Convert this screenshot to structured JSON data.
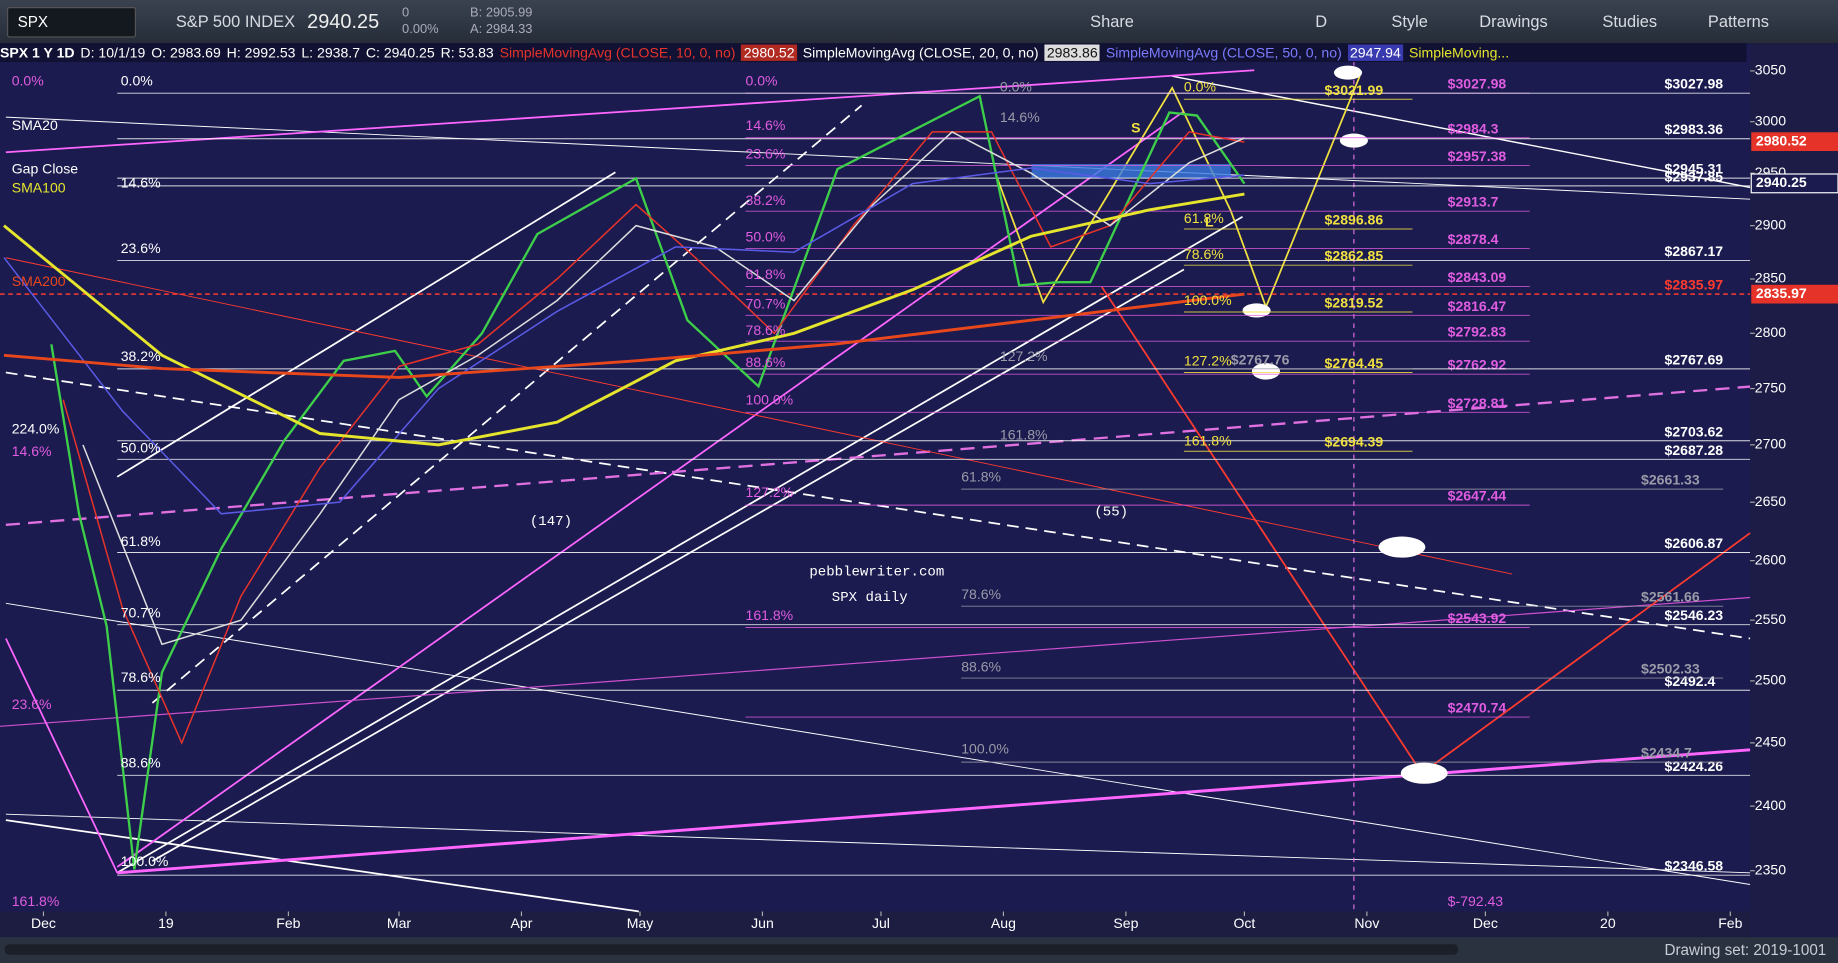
{
  "toolbar": {
    "symbol": "SPX",
    "name": "S&P 500 INDEX",
    "last": "2940.25",
    "change": "0",
    "change_pct": "0.00%",
    "bid": "B: 2905.99",
    "ask": "A: 2984.33",
    "buttons": [
      "Share",
      "D",
      "Style",
      "Drawings",
      "Studies",
      "Patterns"
    ]
  },
  "legend": {
    "symbol": "SPX 1 Y 1D",
    "fields": [
      "D: 10/1/19",
      "O: 2983.69",
      "H: 2992.53",
      "L: 2938.7",
      "C: 2940.25",
      "R: 53.83"
    ],
    "more": "SimpleMoving..."
  },
  "chart_data": {
    "type": "line",
    "log_scale": true,
    "xlim": [
      -11,
      432
    ],
    "xticks": [
      {
        "value": 0,
        "label": "Dec"
      },
      {
        "value": 31,
        "label": "19"
      },
      {
        "value": 62,
        "label": "Feb"
      },
      {
        "value": 90,
        "label": "Mar"
      },
      {
        "value": 121,
        "label": "Apr"
      },
      {
        "value": 151,
        "label": "May"
      },
      {
        "value": 182,
        "label": "Jun"
      },
      {
        "value": 212,
        "label": "Jul"
      },
      {
        "value": 243,
        "label": "Aug"
      },
      {
        "value": 274,
        "label": "Sep"
      },
      {
        "value": 304,
        "label": "Oct"
      },
      {
        "value": 335,
        "label": "Nov"
      },
      {
        "value": 365,
        "label": "Dec"
      },
      {
        "value": 396,
        "label": "20"
      },
      {
        "value": 427,
        "label": "Feb"
      }
    ],
    "ylim": [
      2319,
      3060
    ],
    "yticks": [
      2350,
      2400,
      2450,
      2500,
      2550,
      2600,
      2650,
      2700,
      2750,
      2800,
      2850,
      2900,
      2950,
      3000,
      3050
    ],
    "series": [
      {
        "name": "SPX",
        "color": "#3ecf4a",
        "current": 2940.25,
        "x": [
          2,
          9,
          16,
          23,
          30,
          45,
          61,
          76,
          89,
          97,
          111,
          125,
          150,
          163,
          181,
          201,
          237,
          247,
          257,
          265,
          285,
          292,
          304
        ],
        "values": [
          2790,
          2640,
          2545,
          2351,
          2507,
          2610,
          2704,
          2775,
          2784,
          2743,
          2800,
          2892,
          2945,
          2812,
          2752,
          2954,
          3025,
          2844,
          2847,
          2847,
          3009,
          3006,
          2940
        ]
      },
      {
        "name": "SimpleMovingAvg (CLOSE, 10, 0, no)",
        "color": "#e5332a",
        "current": 2980.52,
        "x": [
          5,
          20,
          35,
          50,
          70,
          90,
          110,
          130,
          150,
          165,
          185,
          205,
          225,
          240,
          255,
          270,
          290,
          304
        ],
        "values": [
          2740,
          2560,
          2450,
          2570,
          2680,
          2770,
          2790,
          2850,
          2920,
          2870,
          2800,
          2900,
          2990,
          2990,
          2880,
          2900,
          2990,
          2980
        ]
      },
      {
        "name": "SimpleMovingAvg (CLOSE, 20, 0, no)",
        "color": "#dddddd",
        "current": 2983.86,
        "x": [
          10,
          30,
          50,
          70,
          90,
          110,
          130,
          150,
          170,
          190,
          210,
          230,
          250,
          270,
          290,
          304
        ],
        "values": [
          2700,
          2530,
          2550,
          2640,
          2740,
          2780,
          2830,
          2900,
          2880,
          2830,
          2920,
          2990,
          2950,
          2900,
          2960,
          2984
        ]
      },
      {
        "name": "SimpleMovingAvg (CLOSE, 50, 0, no)",
        "color": "#5a5ae6",
        "current": 2947.94,
        "x": [
          -10,
          20,
          45,
          75,
          100,
          130,
          160,
          190,
          220,
          250,
          280,
          304
        ],
        "values": [
          2870,
          2730,
          2640,
          2650,
          2750,
          2820,
          2880,
          2875,
          2940,
          2955,
          2940,
          2948
        ]
      },
      {
        "name": "SMA100",
        "color": "#e5e52e",
        "x": [
          -10,
          30,
          70,
          100,
          130,
          160,
          190,
          220,
          250,
          280,
          304
        ],
        "values": [
          2900,
          2780,
          2710,
          2700,
          2720,
          2775,
          2800,
          2840,
          2890,
          2915,
          2930
        ]
      },
      {
        "name": "SMA200",
        "color": "#e8471c",
        "current": 2835.97,
        "x": [
          -10,
          30,
          90,
          150,
          200,
          250,
          304
        ],
        "values": [
          2780,
          2768,
          2760,
          2775,
          2790,
          2812,
          2836
        ]
      }
    ],
    "levels": [
      {
        "color": "#e05ce0",
        "items": [
          {
            "label": "$3027.98",
            "value": 3027.98
          },
          {
            "label": "$2984.3",
            "value": 2984.3
          },
          {
            "label": "$2957.38",
            "value": 2957.38
          },
          {
            "label": "$2913.7",
            "value": 2913.7
          },
          {
            "label": "$2878.4",
            "value": 2878.4
          },
          {
            "label": "$2843.09",
            "value": 2843.09
          },
          {
            "label": "$2816.47",
            "value": 2816.47
          },
          {
            "label": "$2792.83",
            "value": 2792.83
          },
          {
            "label": "$2762.92",
            "value": 2762.92
          },
          {
            "label": "$2728.81",
            "value": 2728.81
          },
          {
            "label": "$2647.44",
            "value": 2647.44
          },
          {
            "label": "$2543.92",
            "value": 2543.92
          },
          {
            "label": "$2470.74",
            "value": 2470.74
          }
        ]
      },
      {
        "color": "#ffffff",
        "items": [
          {
            "label": "$3027.98",
            "value": 3027.98
          },
          {
            "label": "$2983.36",
            "value": 2983.36
          },
          {
            "label": "$2945.31",
            "value": 2945.31
          },
          {
            "label": "$2937.85",
            "value": 2937.85
          },
          {
            "label": "$2867.17",
            "value": 2867.17
          },
          {
            "label": "$2767.69",
            "value": 2767.69
          },
          {
            "label": "$2703.62",
            "value": 2703.62
          },
          {
            "label": "$2687.28",
            "value": 2687.28
          },
          {
            "label": "$2606.87",
            "value": 2606.87
          },
          {
            "label": "$2546.23",
            "value": 2546.23
          },
          {
            "label": "$2492.4",
            "value": 2492.4
          },
          {
            "label": "$2424.26",
            "value": 2424.26
          },
          {
            "label": "$2346.58",
            "value": 2346.58
          }
        ]
      },
      {
        "color": "#ff3b2f",
        "items": [
          {
            "label": "$2835.97",
            "value": 2835.97
          }
        ]
      },
      {
        "color": "#f0e040",
        "items": [
          {
            "label": "$3021.99",
            "value": 3021.99
          },
          {
            "label": "$2896.86",
            "value": 2896.86
          },
          {
            "label": "$2862.85",
            "value": 2862.85
          },
          {
            "label": "$2819.52",
            "value": 2819.52
          },
          {
            "label": "$2764.45",
            "value": 2764.45
          },
          {
            "label": "$2694.39",
            "value": 2694.39
          }
        ]
      },
      {
        "color": "#9a9aa8",
        "items": [
          {
            "label": "$2661.33",
            "value": 2661.33
          },
          {
            "label": "$2561.66",
            "value": 2561.66
          },
          {
            "label": "$2502.33",
            "value": 2502.33
          },
          {
            "label": "$2434.7",
            "value": 2434.7
          },
          {
            "label": "$2767.76",
            "value": 2767.76
          }
        ]
      }
    ],
    "fib_labels": [
      {
        "color": "#e05ce0",
        "texts": [
          "0.0%",
          "14.6%",
          "23.6%",
          "161.8%",
          "$-792.43"
        ]
      },
      {
        "color": "#ffffff",
        "texts": [
          "224.0%",
          "0.0%",
          "14.6%",
          "23.6%",
          "38.2%",
          "50.0%",
          "61.8%",
          "70.7%",
          "78.6%",
          "88.6%",
          "100.0%"
        ]
      },
      {
        "color": "#e05ce0",
        "texts": [
          "0.0%",
          "14.6%",
          "23.6%",
          "38.2%",
          "50.0%",
          "61.8%",
          "70.7%",
          "78.6%",
          "88.6%",
          "100.0%",
          "127.2%",
          "161.8%"
        ]
      },
      {
        "color": "#9a9aa8",
        "texts": [
          "61.8%",
          "78.6%",
          "88.6%",
          "100.0%",
          "127.2%",
          "161.8%",
          "14.6%",
          "0.0%"
        ]
      },
      {
        "color": "#f0e040",
        "texts": [
          "0.0%",
          "61.8%",
          "78.6%",
          "100.0%",
          "127.2%",
          "161.8%",
          "S",
          "L"
        ]
      },
      {
        "color": "#ffffff",
        "texts": [
          "SMA20",
          "Gap Close"
        ]
      }
    ],
    "annotations": [
      "(147)",
      "(55)",
      "pebblewriter.com",
      "SPX daily"
    ]
  },
  "footer": {
    "drawing_set": "Drawing set: 2019-1001"
  }
}
